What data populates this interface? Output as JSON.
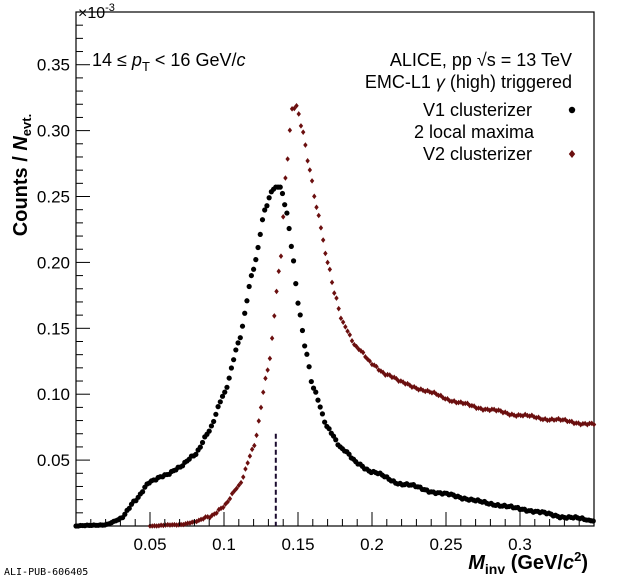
{
  "chart_data": {
    "type": "scatter",
    "x_axis": {
      "range": [
        0.0,
        0.35
      ],
      "ticks": [
        0.05,
        0.1,
        0.15,
        0.2,
        0.25,
        0.3
      ],
      "tick_labels": [
        "0.05",
        "0.1",
        "0.15",
        "0.2",
        "0.25",
        "0.3"
      ],
      "title_main": "M",
      "title_sub": "inv",
      "title_units_pre": "(GeV/",
      "title_units_c": "c",
      "title_units_exp": "2",
      "title_units_post": ")"
    },
    "y_axis": {
      "range": [
        0.0,
        0.39
      ],
      "ticks": [
        0.05,
        0.1,
        0.15,
        0.2,
        0.25,
        0.3,
        0.35
      ],
      "tick_labels": [
        "0.05",
        "0.10",
        "0.15",
        "0.20",
        "0.25",
        "0.30",
        "0.35"
      ],
      "multiplier": "×10",
      "multiplier_exp": "-3",
      "title_pre": "Counts / ",
      "title_n": "N",
      "title_sub": "evt."
    },
    "annotations": {
      "pt_range_left": "14 ≤",
      "pt_symbol": "p",
      "pt_sub": "T",
      "pt_range_right": "< 16 GeV/",
      "pt_c": "c",
      "experiment_pre": "ALICE, pp ",
      "sqrt_symbol": "√s",
      "experiment_post": " = 13 TeV",
      "trigger_pre": "EMC-L1 ",
      "trigger_gamma": "γ",
      "trigger_post": " (high) triggered",
      "footer_id": "ALI-PUB-606405"
    },
    "series": [
      {
        "name": "V1 clusterizer",
        "sub_label": "2 local maxima",
        "color": "#000000",
        "marker": "circle",
        "x_start": 0.0,
        "x_step": 0.0015,
        "shape_knots": [
          [
            0.0,
            0.0
          ],
          [
            0.02,
            0.001
          ],
          [
            0.03,
            0.005
          ],
          [
            0.04,
            0.02
          ],
          [
            0.05,
            0.033
          ],
          [
            0.06,
            0.039
          ],
          [
            0.07,
            0.044
          ],
          [
            0.08,
            0.054
          ],
          [
            0.09,
            0.072
          ],
          [
            0.1,
            0.1
          ],
          [
            0.11,
            0.14
          ],
          [
            0.12,
            0.195
          ],
          [
            0.128,
            0.242
          ],
          [
            0.133,
            0.256
          ],
          [
            0.138,
            0.257
          ],
          [
            0.142,
            0.24
          ],
          [
            0.146,
            0.21
          ],
          [
            0.15,
            0.17
          ],
          [
            0.155,
            0.135
          ],
          [
            0.16,
            0.105
          ],
          [
            0.17,
            0.075
          ],
          [
            0.18,
            0.058
          ],
          [
            0.19,
            0.048
          ],
          [
            0.2,
            0.041
          ],
          [
            0.22,
            0.032
          ],
          [
            0.25,
            0.024
          ],
          [
            0.28,
            0.017
          ],
          [
            0.3,
            0.013
          ],
          [
            0.33,
            0.007
          ],
          [
            0.35,
            0.004
          ]
        ]
      },
      {
        "name": "V2 clusterizer",
        "color": "#6b0f0f",
        "marker": "diamond",
        "x_start": 0.05,
        "x_step": 0.0015,
        "shape_knots": [
          [
            0.05,
            0.0
          ],
          [
            0.07,
            0.001
          ],
          [
            0.08,
            0.003
          ],
          [
            0.09,
            0.007
          ],
          [
            0.1,
            0.015
          ],
          [
            0.11,
            0.03
          ],
          [
            0.12,
            0.06
          ],
          [
            0.13,
            0.12
          ],
          [
            0.138,
            0.2
          ],
          [
            0.142,
            0.27
          ],
          [
            0.146,
            0.316
          ],
          [
            0.149,
            0.318
          ],
          [
            0.153,
            0.3
          ],
          [
            0.158,
            0.27
          ],
          [
            0.163,
            0.24
          ],
          [
            0.17,
            0.2
          ],
          [
            0.175,
            0.175
          ],
          [
            0.18,
            0.155
          ],
          [
            0.19,
            0.135
          ],
          [
            0.2,
            0.123
          ],
          [
            0.21,
            0.115
          ],
          [
            0.22,
            0.109
          ],
          [
            0.24,
            0.101
          ],
          [
            0.26,
            0.093
          ],
          [
            0.28,
            0.088
          ],
          [
            0.3,
            0.084
          ],
          [
            0.32,
            0.081
          ],
          [
            0.35,
            0.077
          ]
        ]
      }
    ],
    "reference_line": {
      "x": 0.135,
      "y_top": 0.07,
      "color": "#1a0a2e",
      "style": "dashed"
    }
  }
}
